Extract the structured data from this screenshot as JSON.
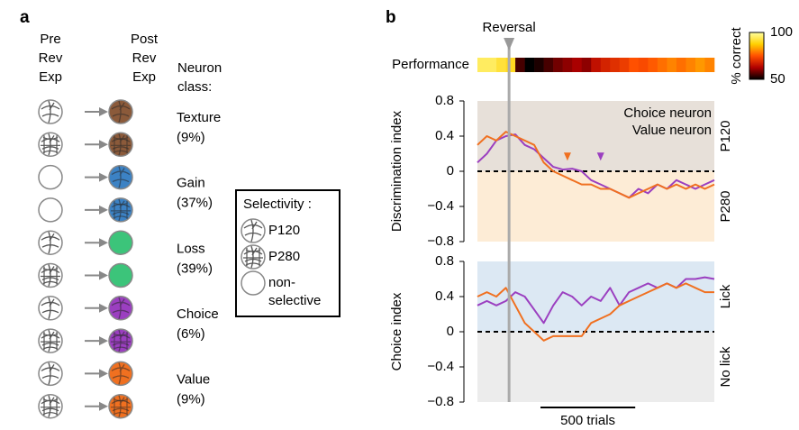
{
  "panel_a": {
    "label": "a",
    "pre_header": [
      "Pre",
      "Rev",
      "Exp"
    ],
    "post_header": [
      "Post",
      "Rev",
      "Exp"
    ],
    "class_header": [
      "Neuron",
      "class:"
    ],
    "classes": [
      {
        "name": "Texture",
        "share": "(9%)",
        "color": "#8b5a3a"
      },
      {
        "name": "Gain",
        "share": "(37%)",
        "color": "#3c82c4"
      },
      {
        "name": "Loss",
        "share": "(39%)",
        "color": "#3cc47a"
      },
      {
        "name": "Choice",
        "share": "(6%)",
        "color": "#9b3fc0"
      },
      {
        "name": "Value",
        "share": "(9%)",
        "color": "#f07020"
      }
    ],
    "legend": {
      "title": "Selectivity :",
      "items": [
        "P120",
        "P280"
      ],
      "nonselective": [
        "non-",
        "selective"
      ]
    }
  },
  "panel_b": {
    "label": "b",
    "reversal": {
      "x": 167,
      "label": "Reversal"
    },
    "scale_bar": {
      "value": 500,
      "label": "500 trials"
    }
  },
  "chart_data": [
    {
      "type": "heatmap",
      "title": "Performance",
      "x": [
        0,
        50,
        100,
        150,
        200,
        250,
        300,
        350,
        400,
        450,
        500,
        550,
        600,
        650,
        700,
        750,
        800,
        850,
        900,
        950,
        1000,
        1050,
        1100,
        1150,
        1200
      ],
      "values": [
        95,
        95,
        92,
        90,
        55,
        50,
        52,
        55,
        58,
        60,
        62,
        60,
        65,
        68,
        70,
        72,
        75,
        74,
        76,
        78,
        80,
        78,
        80,
        82,
        80
      ],
      "xlim": [
        0,
        1250
      ],
      "clim": [
        50,
        100
      ],
      "cticks": [
        100,
        50
      ],
      "colorbar_label": "% correct",
      "colormap": [
        "#000000",
        "#b00000",
        "#ff5000",
        "#ffd000",
        "#ffffa0"
      ]
    },
    {
      "type": "line",
      "ylabel": "Discrimination index",
      "x": [
        0,
        50,
        100,
        150,
        200,
        250,
        300,
        350,
        400,
        450,
        500,
        550,
        600,
        650,
        700,
        750,
        800,
        850,
        900,
        950,
        1000,
        1050,
        1100,
        1150,
        1200,
        1250
      ],
      "xlim": [
        0,
        1250
      ],
      "ylim": [
        -0.8,
        0.8
      ],
      "yticks": [
        0.8,
        0.4,
        0,
        {
          "value": -0.4,
          "label": "−0.4"
        },
        {
          "value": -0.8,
          "label": "−0.8"
        }
      ],
      "reference_line": 0,
      "regions": [
        {
          "label": "P120",
          "range": [
            0,
            0.8
          ],
          "fill": "#e7e0d9",
          "color": "#8b5a3a"
        },
        {
          "label": "P280",
          "range": [
            -0.8,
            0
          ],
          "fill": "#fdecd6",
          "color": "#f0a040"
        }
      ],
      "series": [
        {
          "name": "Choice neuron",
          "color": "#9b3fc0",
          "values": [
            0.1,
            0.2,
            0.35,
            0.4,
            0.42,
            0.3,
            0.25,
            0.15,
            0.05,
            0.02,
            0.03,
            0,
            -0.1,
            -0.15,
            -0.2,
            -0.25,
            -0.3,
            -0.2,
            -0.25,
            -0.15,
            -0.2,
            -0.1,
            -0.15,
            -0.2,
            -0.15,
            -0.1
          ]
        },
        {
          "name": "Value neuron",
          "color": "#f07020",
          "values": [
            0.3,
            0.4,
            0.35,
            0.45,
            0.4,
            0.35,
            0.3,
            0.1,
            0,
            -0.05,
            -0.1,
            -0.15,
            -0.15,
            -0.2,
            -0.2,
            -0.25,
            -0.3,
            -0.25,
            -0.2,
            -0.15,
            -0.2,
            -0.15,
            -0.2,
            -0.15,
            -0.2,
            -0.15
          ]
        }
      ],
      "markers": [
        {
          "x": 475,
          "y": 0.12,
          "color": "#f07020"
        },
        {
          "x": 650,
          "y": 0.12,
          "color": "#9b3fc0"
        }
      ]
    },
    {
      "type": "line",
      "ylabel": "Choice index",
      "x": [
        0,
        50,
        100,
        150,
        200,
        250,
        300,
        350,
        400,
        450,
        500,
        550,
        600,
        650,
        700,
        750,
        800,
        850,
        900,
        950,
        1000,
        1050,
        1100,
        1150,
        1200,
        1250
      ],
      "xlim": [
        0,
        1250
      ],
      "ylim": [
        -0.8,
        0.8
      ],
      "yticks": [
        0.8,
        0.4,
        0,
        {
          "value": -0.4,
          "label": "−0.4"
        },
        {
          "value": -0.8,
          "label": "−0.8"
        }
      ],
      "reference_line": 0,
      "regions": [
        {
          "label": "Lick",
          "range": [
            0,
            0.8
          ],
          "fill": "#dce8f3",
          "color": "#3c82c4"
        },
        {
          "label": "No lick",
          "range": [
            -0.8,
            0
          ],
          "fill": "#ececec",
          "color": "#b0b0b0"
        }
      ],
      "series": [
        {
          "color": "#9b3fc0",
          "values": [
            0.3,
            0.35,
            0.3,
            0.35,
            0.45,
            0.4,
            0.25,
            0.1,
            0.3,
            0.45,
            0.4,
            0.3,
            0.4,
            0.35,
            0.5,
            0.3,
            0.45,
            0.5,
            0.55,
            0.5,
            0.55,
            0.5,
            0.6,
            0.6,
            0.62,
            0.6
          ]
        },
        {
          "color": "#f07020",
          "values": [
            0.4,
            0.45,
            0.4,
            0.5,
            0.3,
            0.1,
            0,
            -0.1,
            -0.05,
            -0.05,
            -0.05,
            -0.05,
            0.1,
            0.15,
            0.2,
            0.3,
            0.35,
            0.4,
            0.45,
            0.5,
            0.55,
            0.5,
            0.55,
            0.5,
            0.45,
            0.45
          ]
        }
      ]
    }
  ]
}
